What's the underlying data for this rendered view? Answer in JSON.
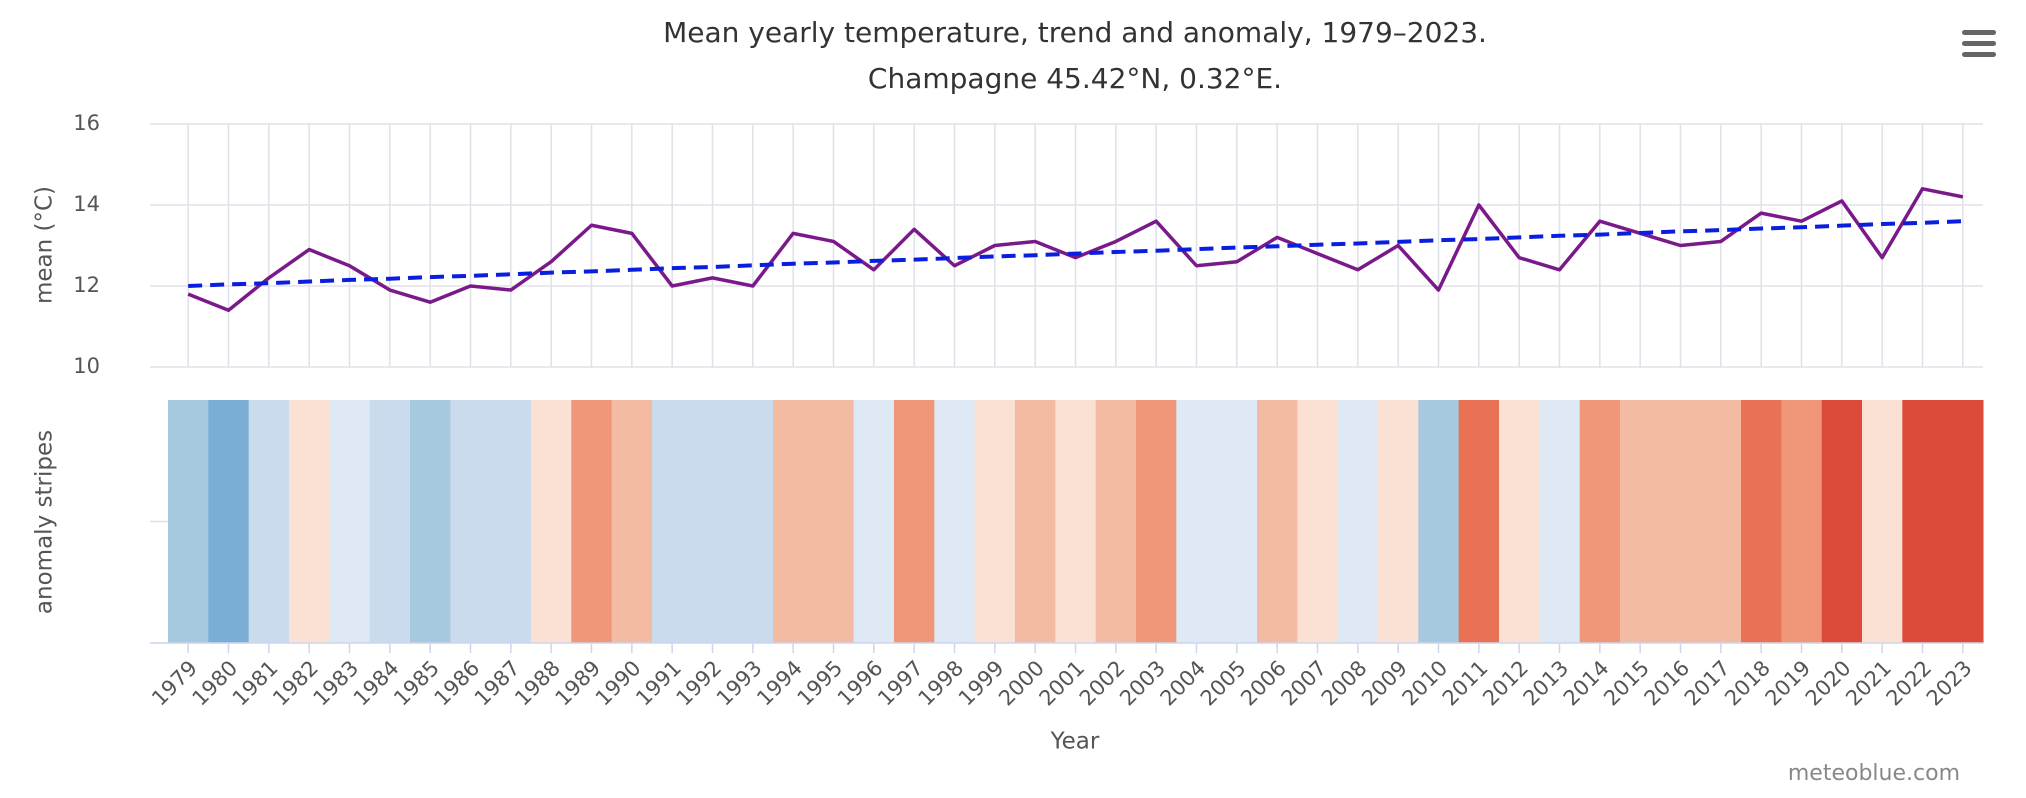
{
  "chart_data": {
    "type": "line",
    "title": "Mean yearly temperature, trend and anomaly, 1979–2023.",
    "subtitle": "Champagne 45.42°N, 0.32°E.",
    "x_label": "Year",
    "y_label": "mean (°C)",
    "stripes_label": "anomaly stripes",
    "credit": "meteoblue.com",
    "categories": [
      "1979",
      "1980",
      "1981",
      "1982",
      "1983",
      "1984",
      "1985",
      "1986",
      "1987",
      "1988",
      "1989",
      "1990",
      "1991",
      "1992",
      "1993",
      "1994",
      "1995",
      "1996",
      "1997",
      "1998",
      "1999",
      "2000",
      "2001",
      "2002",
      "2003",
      "2004",
      "2005",
      "2006",
      "2007",
      "2008",
      "2009",
      "2010",
      "2011",
      "2012",
      "2013",
      "2014",
      "2015",
      "2016",
      "2017",
      "2018",
      "2019",
      "2020",
      "2021",
      "2022",
      "2023"
    ],
    "series": [
      {
        "name": "mean",
        "color": "#7a1a8a",
        "dashed": false,
        "values": [
          11.8,
          11.4,
          12.2,
          12.9,
          12.5,
          11.9,
          11.6,
          12.0,
          11.9,
          12.6,
          13.5,
          13.3,
          12.0,
          12.2,
          12.0,
          13.3,
          13.1,
          12.4,
          13.4,
          12.5,
          13.0,
          13.1,
          12.7,
          13.1,
          13.6,
          12.5,
          12.6,
          13.2,
          12.8,
          12.4,
          13.0,
          11.9,
          14.0,
          12.7,
          12.4,
          13.6,
          13.3,
          13.0,
          13.1,
          13.8,
          13.6,
          14.1,
          12.7,
          14.4,
          14.2
        ]
      },
      {
        "name": "trend",
        "color": "#0a1ee0",
        "dashed": true,
        "values": [
          12.0,
          12.04,
          12.07,
          12.11,
          12.15,
          12.18,
          12.22,
          12.25,
          12.29,
          12.33,
          12.36,
          12.4,
          12.44,
          12.47,
          12.51,
          12.55,
          12.58,
          12.62,
          12.65,
          12.69,
          12.73,
          12.76,
          12.8,
          12.84,
          12.87,
          12.91,
          12.95,
          12.98,
          13.02,
          13.05,
          13.09,
          13.13,
          13.16,
          13.2,
          13.24,
          13.27,
          13.31,
          13.35,
          13.38,
          13.42,
          13.45,
          13.49,
          13.53,
          13.56,
          13.6
        ]
      }
    ],
    "stripe_colors": [
      "#a6c9dd",
      "#7aaed4",
      "#c9dbec",
      "#fbe0d4",
      "#dfe9f5",
      "#c9dbec",
      "#a6c9dd",
      "#c9dbec",
      "#c9dbec",
      "#fbe0d4",
      "#ef9778",
      "#f3bba2",
      "#c9dbec",
      "#c9dbec",
      "#c9dbec",
      "#f3bba2",
      "#f3bba2",
      "#dfe9f5",
      "#ef9778",
      "#dfe9f5",
      "#fbe0d4",
      "#f3bba2",
      "#fbe0d4",
      "#f3bba2",
      "#ef9778",
      "#dfe9f5",
      "#dfe9f5",
      "#f3bba2",
      "#fbe0d4",
      "#dfe9f5",
      "#fbe0d4",
      "#a6c9dd",
      "#e97254",
      "#fbe0d4",
      "#dfe9f5",
      "#ef9778",
      "#f3bba2",
      "#f3bba2",
      "#f3bba2",
      "#e97254",
      "#ef9778",
      "#dc4b3a",
      "#fbe0d4",
      "#dc4b3a",
      "#dc4b3a"
    ],
    "ylim": [
      10,
      16
    ],
    "yticks": [
      10,
      12,
      14,
      16
    ],
    "grid": true
  }
}
